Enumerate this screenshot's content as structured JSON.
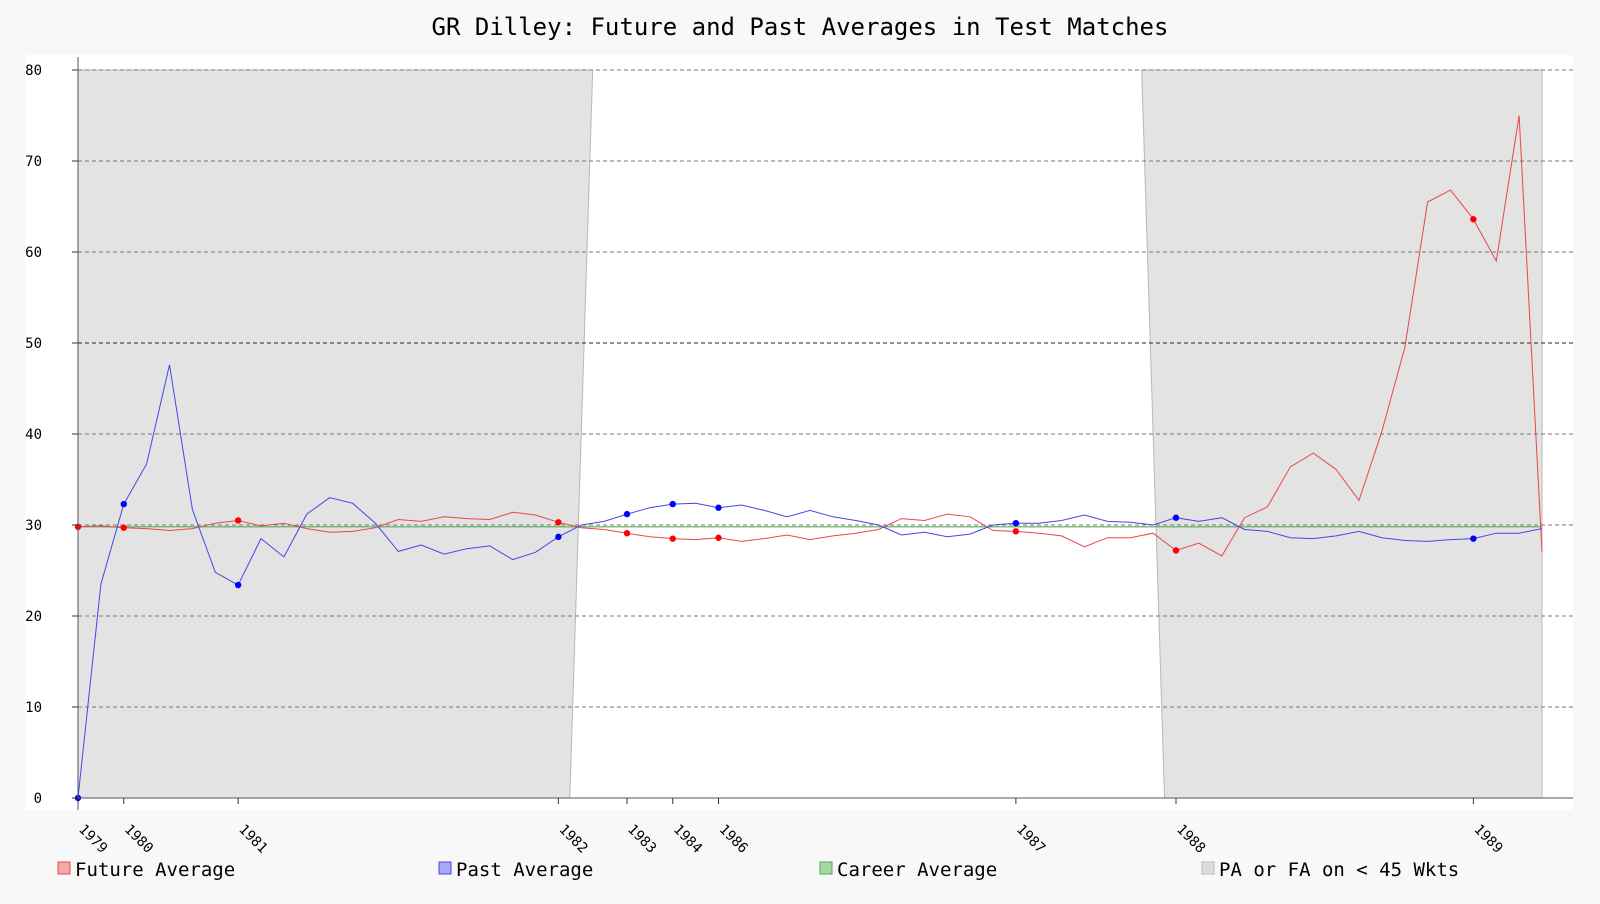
{
  "chart_data": {
    "type": "line",
    "title": "GR Dilley: Future and Past Averages in Test Matches",
    "xlabel": "",
    "ylabel": "",
    "ylim": [
      0,
      80
    ],
    "y_ticks": [
      0,
      10,
      20,
      30,
      40,
      50,
      60,
      70,
      80
    ],
    "grid": true,
    "legend_position": "bottom",
    "x_count": 65,
    "x_tick_labels": [
      {
        "index": 0,
        "label": "1979"
      },
      {
        "index": 2,
        "label": "1980"
      },
      {
        "index": 7,
        "label": "1981"
      },
      {
        "index": 21,
        "label": "1982"
      },
      {
        "index": 24,
        "label": "1983"
      },
      {
        "index": 26,
        "label": "1984"
      },
      {
        "index": 28,
        "label": "1986"
      },
      {
        "index": 41,
        "label": "1987"
      },
      {
        "index": 48,
        "label": "1988"
      },
      {
        "index": 61,
        "label": "1989"
      }
    ],
    "series": [
      {
        "name": "Future Average",
        "color": "#e8474a",
        "values": [
          29.8,
          29.9,
          29.7,
          29.6,
          29.4,
          29.6,
          30.2,
          30.5,
          29.9,
          30.2,
          29.6,
          29.2,
          29.3,
          29.7,
          30.6,
          30.4,
          30.9,
          30.7,
          30.6,
          31.4,
          31.1,
          30.3,
          29.7,
          29.5,
          29.1,
          28.7,
          28.5,
          28.4,
          28.6,
          28.2,
          28.5,
          28.9,
          28.4,
          28.8,
          29.1,
          29.5,
          30.7,
          30.5,
          31.2,
          30.9,
          29.4,
          29.3,
          29.1,
          28.8,
          27.6,
          28.6,
          28.6,
          29.1,
          27.2,
          28.0,
          26.6,
          30.8,
          32.0,
          36.4,
          37.9,
          36.1,
          32.7,
          40.3,
          49.5,
          65.5,
          66.8,
          63.6,
          59.0,
          75.0,
          27.0
        ],
        "markers": [
          0,
          2,
          7,
          21,
          24,
          26,
          28,
          41,
          48,
          61
        ]
      },
      {
        "name": "Past Average",
        "color": "#4646e8",
        "values": [
          0,
          23.5,
          32.3,
          36.7,
          47.6,
          31.7,
          24.8,
          23.4,
          28.5,
          26.5,
          31.2,
          33.0,
          32.4,
          30.2,
          27.1,
          27.8,
          26.8,
          27.4,
          27.7,
          26.2,
          27.0,
          28.7,
          30.0,
          30.4,
          31.2,
          31.9,
          32.3,
          32.4,
          31.9,
          32.2,
          31.6,
          30.9,
          31.6,
          30.9,
          30.5,
          30.0,
          28.9,
          29.2,
          28.7,
          29.0,
          30.0,
          30.2,
          30.2,
          30.5,
          31.1,
          30.4,
          30.3,
          30.0,
          30.8,
          30.4,
          30.8,
          29.5,
          29.3,
          28.6,
          28.5,
          28.8,
          29.3,
          28.6,
          28.3,
          28.2,
          28.4,
          28.5,
          29.1,
          29.1,
          29.6
        ],
        "markers": [
          0,
          2,
          7,
          21,
          24,
          26,
          28,
          41,
          48,
          61
        ]
      },
      {
        "name": "Career Average",
        "color": "#55aa55",
        "values": [
          29.8
        ]
      },
      {
        "name": "PA or FA on < 45 Wkts",
        "color": "#d0d0d0",
        "shaded_ranges_x": [
          [
            0,
            22.5
          ],
          [
            46.5,
            64
          ]
        ]
      }
    ]
  }
}
